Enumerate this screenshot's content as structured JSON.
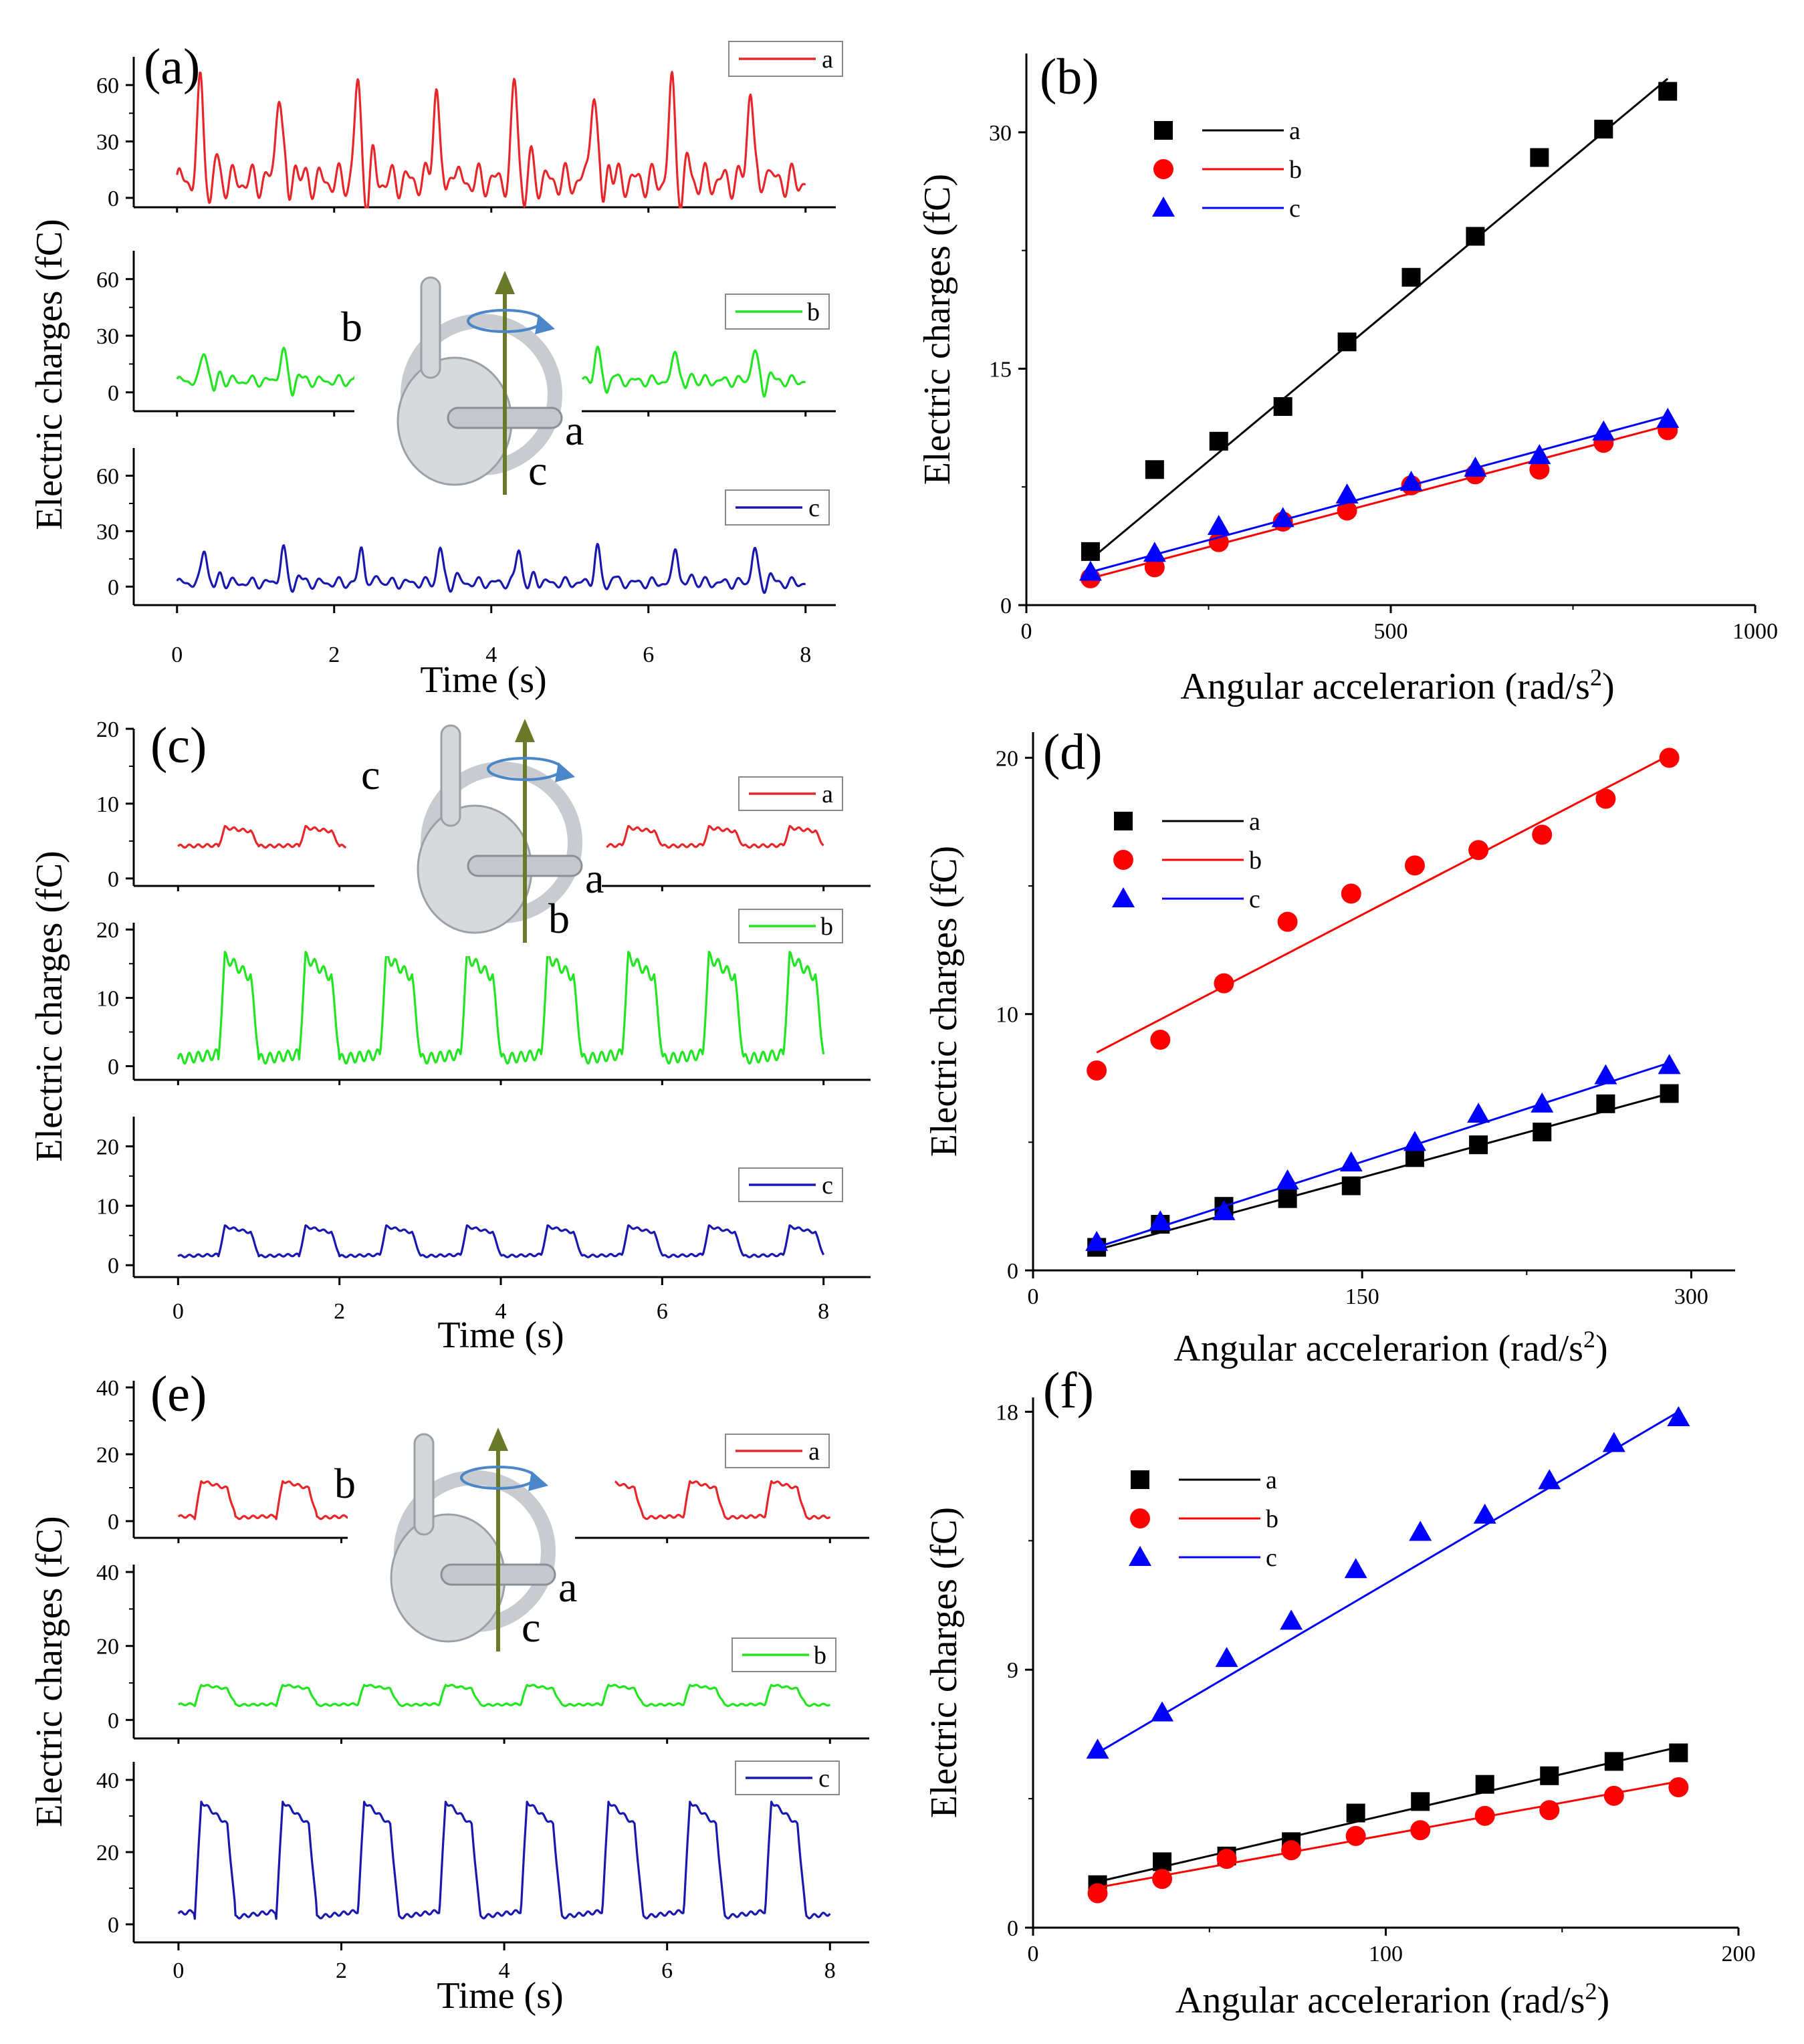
{
  "chart_data": {
    "panel_labels": [
      "(a)",
      "(b)",
      "(c)",
      "(d)",
      "(e)",
      "(f)"
    ],
    "series_names": [
      "a",
      "b",
      "c"
    ],
    "colors": {
      "a_time": "#e8262a",
      "b_time": "#22e522",
      "c_time": "#1818b0",
      "a_fit": "#000000",
      "b_fit": "#ff0000",
      "c_fit": "#0000ff",
      "a_marker": "#000000",
      "b_marker": "#ff0000",
      "c_marker": "#0000ff",
      "arrow": "#6b7a2a",
      "spin": "#4a86c8"
    },
    "marker_shapes": {
      "a": "square",
      "b": "circle",
      "c": "triangle"
    },
    "time_panels": [
      {
        "label": "(a)",
        "type": "line",
        "xlabel": "Time (s)",
        "ylabel": "Electric charges (fC)",
        "xlim": [
          -0.5,
          8.3
        ],
        "xticks": [
          0,
          2,
          4,
          6,
          8
        ],
        "inset_labels": [
          "b",
          "a",
          "c"
        ],
        "series": [
          {
            "name": "a",
            "ylim": [
              -5,
              75
            ],
            "yticks": [
              0,
              30,
              60
            ],
            "baseline": 9,
            "ripple": 6,
            "ripple_freq": 4.5,
            "peak_period": 1,
            "peak_phase": 0.3,
            "peak_height": 50,
            "peak_width": 0.04,
            "dip": -12,
            "hidden_t": []
          },
          {
            "name": "b",
            "ylim": [
              -10,
              75
            ],
            "yticks": [
              0,
              30,
              60
            ],
            "baseline": 6,
            "ripple": 2,
            "ripple_freq": 4.5,
            "peak_period": 1,
            "peak_phase": 0.35,
            "peak_height": 16,
            "peak_width": 0.04,
            "dip": -6,
            "hidden_t": [
              2.72,
              5.15
            ]
          },
          {
            "name": "c",
            "ylim": [
              -10,
              75
            ],
            "yticks": [
              0,
              30,
              60
            ],
            "baseline": 2,
            "ripple": 2,
            "ripple_freq": 4.5,
            "peak_period": 1,
            "peak_phase": 0.35,
            "peak_height": 19,
            "peak_width": 0.035,
            "dip": -3,
            "hidden_t": []
          }
        ]
      },
      {
        "label": "(c)",
        "type": "line",
        "xlabel": "Time (s)",
        "ylabel": "Electric charges (fC)",
        "xlim": [
          -0.5,
          8.5
        ],
        "xticks": [
          0,
          2,
          4,
          6,
          8
        ],
        "inset_labels": [
          "c",
          "a",
          "b"
        ],
        "series": [
          {
            "name": "a",
            "ylim": [
              -1,
              20
            ],
            "yticks": [
              0,
              10,
              20
            ],
            "low": 4.3,
            "high": 6.8,
            "period": 1,
            "rise_phase": 0.5,
            "wiggle": 0.4,
            "hidden_t": [
              2.08,
              5.3
            ]
          },
          {
            "name": "b",
            "ylim": [
              -2,
              21
            ],
            "yticks": [
              0,
              10,
              20
            ],
            "low": 1,
            "high": 16,
            "period": 1,
            "rise_phase": 0.5,
            "wiggle": 1.5,
            "hidden_t": []
          },
          {
            "name": "c",
            "ylim": [
              -2,
              25
            ],
            "yticks": [
              0,
              10,
              20
            ],
            "low": 1.5,
            "high": 6.5,
            "period": 1,
            "rise_phase": 0.5,
            "wiggle": 0.4,
            "hidden_t": []
          }
        ]
      },
      {
        "label": "(e)",
        "type": "line",
        "xlabel": "Time (s)",
        "ylabel": "Electric charges (fC)",
        "xlim": [
          -0.5,
          8.4
        ],
        "xticks": [
          0,
          2,
          4,
          6,
          8
        ],
        "inset_labels": [
          "b",
          "a",
          "c"
        ],
        "series": [
          {
            "name": "a",
            "ylim": [
              -5,
              42
            ],
            "yticks": [
              0,
              20,
              40
            ],
            "low": 1,
            "high": 12,
            "period": 1,
            "rise_phase": 0.2,
            "wiggle": 0.8,
            "hidden_t": [
              2.3,
              5.35
            ]
          },
          {
            "name": "b",
            "ylim": [
              -5,
              42
            ],
            "yticks": [
              0,
              20,
              40
            ],
            "low": 4,
            "high": 9.5,
            "period": 1,
            "rise_phase": 0.2,
            "wiggle": 0.5,
            "hidden_t": []
          },
          {
            "name": "c",
            "ylim": [
              -5,
              45
            ],
            "yticks": [
              0,
              20,
              40
            ],
            "low": 2,
            "high": 34,
            "period": 1,
            "rise_phase": 0.2,
            "wiggle": 1,
            "hidden_t": []
          }
        ]
      }
    ],
    "scatter_panels": [
      {
        "label": "(b)",
        "type": "scatter",
        "xlabel_main": "Angular accelerarion (rad/s",
        "xlabel_sup": "2",
        "xlabel_end": ")",
        "ylabel": "Electric charges (fC)",
        "xlim": [
          0,
          1000
        ],
        "ylim": [
          0,
          35
        ],
        "xticks": [
          0,
          500,
          1000
        ],
        "yticks": [
          0,
          15,
          30
        ],
        "x": [
          88,
          176,
          264,
          352,
          440,
          528,
          616,
          704,
          792,
          880
        ],
        "series": [
          {
            "name": "a",
            "values": [
              3.4,
              8.6,
              10.4,
              12.6,
              16.7,
              20.8,
              23.4,
              28.4,
              30.2,
              32.6
            ],
            "fit": [
              2.9,
              33.4
            ]
          },
          {
            "name": "b",
            "values": [
              1.7,
              2.4,
              4.0,
              5.3,
              6.0,
              7.6,
              8.3,
              8.6,
              10.3,
              11.1
            ],
            "fit": [
              1.7,
              11.4
            ]
          },
          {
            "name": "c",
            "values": [
              2.1,
              3.3,
              5.0,
              5.5,
              7.0,
              7.8,
              8.7,
              9.5,
              11.0,
              11.8
            ],
            "fit": [
              2.1,
              12.0
            ]
          }
        ]
      },
      {
        "label": "(d)",
        "type": "scatter",
        "xlabel_main": "Angular accelerarion (rad/s",
        "xlabel_sup": "2",
        "xlabel_end": ")",
        "ylabel": "Electric charges (fC)",
        "xlim": [
          0,
          320
        ],
        "ylim": [
          0,
          21
        ],
        "xticks": [
          0,
          150,
          300
        ],
        "yticks": [
          0,
          10,
          20
        ],
        "x": [
          29,
          58,
          87,
          116,
          145,
          174,
          203,
          232,
          261,
          290
        ],
        "series": [
          {
            "name": "a",
            "values": [
              0.9,
              1.8,
              2.5,
              2.8,
              3.3,
              4.4,
              4.9,
              5.4,
              6.5,
              6.9
            ],
            "fit": [
              0.8,
              6.9
            ]
          },
          {
            "name": "b",
            "values": [
              7.8,
              9.0,
              11.2,
              13.6,
              14.7,
              15.8,
              16.4,
              17.0,
              18.4,
              20.0
            ],
            "fit": [
              8.5,
              20.1
            ]
          },
          {
            "name": "c",
            "values": [
              1.1,
              1.9,
              2.3,
              3.5,
              4.2,
              5.0,
              6.1,
              6.5,
              7.6,
              8.0
            ],
            "fit": [
              0.9,
              8.1
            ]
          }
        ]
      },
      {
        "label": "(f)",
        "type": "scatter",
        "xlabel_main": "Angular accelerarion (rad/s",
        "xlabel_sup": "2",
        "xlabel_end": ")",
        "ylabel": "Electric charges (fC)",
        "xlim": [
          0,
          200
        ],
        "ylim": [
          0,
          18.5
        ],
        "xticks": [
          0,
          100,
          200
        ],
        "yticks": [
          0,
          9,
          18
        ],
        "x": [
          18.3,
          36.6,
          54.9,
          73.2,
          91.5,
          109.8,
          128.1,
          146.4,
          164.7,
          183
        ],
        "series": [
          {
            "name": "a",
            "values": [
              1.5,
              2.3,
              2.5,
              3.0,
              4.0,
              4.4,
              5.0,
              5.3,
              5.8,
              6.1
            ],
            "fit": [
              1.6,
              6.3
            ]
          },
          {
            "name": "b",
            "values": [
              1.2,
              1.7,
              2.4,
              2.7,
              3.2,
              3.4,
              3.9,
              4.1,
              4.6,
              4.9
            ],
            "fit": [
              1.4,
              5.1
            ]
          },
          {
            "name": "c",
            "values": [
              6.2,
              7.5,
              9.4,
              10.7,
              12.5,
              13.8,
              14.4,
              15.6,
              16.9,
              17.8
            ],
            "fit": [
              6.1,
              18.0
            ]
          }
        ]
      }
    ]
  }
}
